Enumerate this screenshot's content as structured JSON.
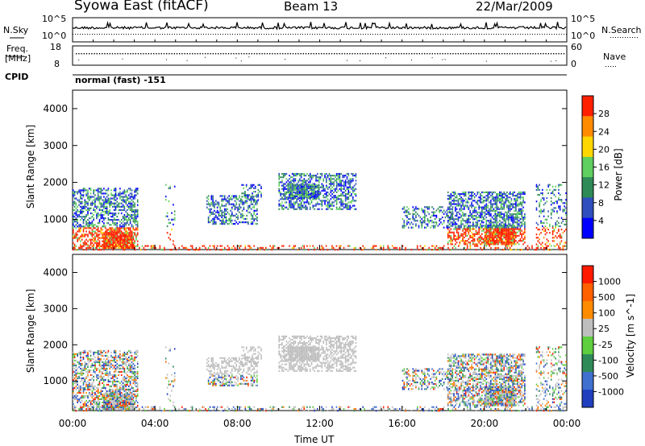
{
  "header": {
    "station": "Syowa East (fitACF)",
    "beam": "Beam 13",
    "date": "22/Mar/2009"
  },
  "panels": {
    "nsky_label": "N.Sky",
    "nsky_top": "10^5",
    "nsky_bottom": "10^0",
    "nsearch_label": "N.Search",
    "nsearch_top": "10^5",
    "nsearch_bottom": "10^0",
    "freq_label_1": "Freq.",
    "freq_label_2": "[MHz]",
    "freq_top": "18",
    "freq_bottom": "8",
    "nave_label": "Nave",
    "nave_top": "60",
    "nave_bottom": "0",
    "cpid_label": "CPID",
    "cpid_value": "normal (fast) -151"
  },
  "chart_data": [
    {
      "type": "heatmap",
      "name": "power",
      "ylabel": "Slant Range [km]",
      "xlabel": "Time UT",
      "x_ticks": [
        "00:00",
        "04:00",
        "08:00",
        "12:00",
        "16:00",
        "20:00",
        "00:00"
      ],
      "y_ticks": [
        "1000",
        "2000",
        "3000",
        "4000"
      ],
      "y_tick_values": [
        1000,
        2000,
        3000,
        4000
      ],
      "ylim": [
        180,
        4500
      ],
      "xlim_hours": [
        0,
        24
      ],
      "colorbar_label": "Power [dB]",
      "colorbar_ticks": [
        "4",
        "8",
        "12",
        "16",
        "20",
        "24",
        "28"
      ],
      "colorbar_colors": [
        "#0000ff",
        "#2f4fbf",
        "#2e8b57",
        "#5fcf5f",
        "#ffd700",
        "#ff8c00",
        "#ff2000"
      ]
    },
    {
      "type": "heatmap",
      "name": "velocity",
      "ylabel": "Slant Range [km]",
      "xlabel": "Time UT",
      "x_ticks": [
        "00:00",
        "04:00",
        "08:00",
        "12:00",
        "16:00",
        "20:00",
        "00:00"
      ],
      "y_ticks": [
        "1000",
        "2000",
        "3000",
        "4000"
      ],
      "y_tick_values": [
        1000,
        2000,
        3000,
        4000
      ],
      "ylim": [
        180,
        4500
      ],
      "xlim_hours": [
        0,
        24
      ],
      "colorbar_label": "Velocity [m s^-1]",
      "colorbar_ticks": [
        "1000",
        "500",
        "100",
        "25",
        "-25",
        "-100",
        "-500",
        "-1000"
      ],
      "colorbar_colors": [
        "#1f3fbf",
        "#3f6fcf",
        "#2e8b57",
        "#5fcf3f",
        "#bebebe",
        "#ff8c00",
        "#ff6000",
        "#ff1a00"
      ]
    }
  ]
}
